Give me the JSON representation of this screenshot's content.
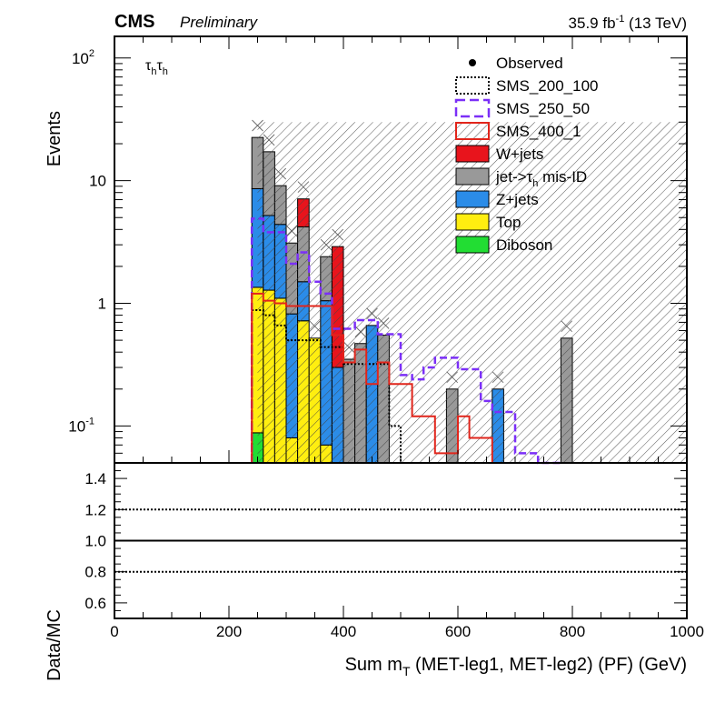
{
  "header": {
    "experiment": "CMS",
    "status": "Preliminary",
    "lumi": "35.9 fb",
    "lumi_sup": "-1",
    "energy": " (13 TeV)"
  },
  "channel": {
    "base": "τ",
    "sub": "h",
    "base2": "τ",
    "sub2": "h"
  },
  "chart_data": [
    {
      "type": "bar",
      "stacked": true,
      "log_y": true,
      "xlabel": "Sum m",
      "xlabel_sub": "T",
      "xlabel_rest": " (MET-leg1, MET-leg2) (PF) (GeV)",
      "ylabel": "Events",
      "xlim": [
        0,
        1000
      ],
      "ylim": [
        0.05,
        150
      ],
      "bin_width": 20,
      "yticks": [
        {
          "v": 0.1,
          "base": "10",
          "exp": "-1"
        },
        {
          "v": 1,
          "base": "1",
          "exp": ""
        },
        {
          "v": 10,
          "base": "10",
          "exp": ""
        },
        {
          "v": 100,
          "base": "10",
          "exp": "2"
        }
      ],
      "x_bin_edges_lo": [
        260,
        280,
        300,
        320,
        340,
        360,
        380,
        400,
        420,
        440,
        460,
        480,
        500,
        520,
        540,
        560,
        580,
        600,
        620,
        640,
        660,
        680,
        700,
        720,
        740,
        760,
        780
      ],
      "legend": [
        {
          "label": "Observed",
          "kind": "marker"
        },
        {
          "label": "SMS_200_100",
          "kind": "dotted",
          "color": "#000000"
        },
        {
          "label": "SMS_250_50",
          "kind": "dashed",
          "color": "#7b2ff7"
        },
        {
          "label": "SMS_400_1",
          "kind": "solid",
          "color": "#e1251b"
        },
        {
          "label": "W+jets",
          "kind": "fill",
          "color": "#e8141c"
        },
        {
          "label": "jet->τ",
          "label_sub": "h",
          "label_rest": " mis-ID",
          "kind": "fill",
          "color": "#999999"
        },
        {
          "label": "Z+jets",
          "kind": "fill",
          "color": "#2b8ce8"
        },
        {
          "label": "Top",
          "kind": "fill",
          "color": "#ffee10"
        },
        {
          "label": "Diboson",
          "kind": "fill",
          "color": "#22dd33"
        }
      ],
      "stack": [
        {
          "x": 250,
          "Diboson": 0.088,
          "Top": 1.35,
          "Zjets": 8.6,
          "jetfake": 22.5,
          "Wjets": 0
        },
        {
          "x": 270,
          "Diboson": 0,
          "Top": 1.28,
          "Zjets": 5.2,
          "jetfake": 17.2,
          "Wjets": 0
        },
        {
          "x": 290,
          "Diboson": 0,
          "Top": 1.1,
          "Zjets": 4.4,
          "jetfake": 9.1,
          "Wjets": 0
        },
        {
          "x": 310,
          "Diboson": 0,
          "Top": 0.08,
          "Zjets": 0.82,
          "jetfake": 3.1,
          "Wjets": 0
        },
        {
          "x": 330,
          "Diboson": 0,
          "Top": 0.72,
          "Zjets": 1.5,
          "jetfake": 4.2,
          "Wjets": 7.1
        },
        {
          "x": 350,
          "Diboson": 0,
          "Top": 0.52,
          "Zjets": 0.52,
          "jetfake": 0.52,
          "Wjets": 0
        },
        {
          "x": 370,
          "Diboson": 0,
          "Top": 0.07,
          "Zjets": 1.05,
          "jetfake": 2.4,
          "Wjets": 0
        },
        {
          "x": 390,
          "Diboson": 0,
          "Top": 0,
          "Zjets": 0.3,
          "jetfake": 0.3,
          "Wjets": 2.9
        },
        {
          "x": 410,
          "Diboson": 0,
          "Top": 0,
          "Zjets": 0,
          "jetfake": 0.35,
          "Wjets": 0
        },
        {
          "x": 430,
          "Diboson": 0,
          "Top": 0,
          "Zjets": 0,
          "jetfake": 0.47,
          "Wjets": 0
        },
        {
          "x": 450,
          "Diboson": 0,
          "Top": 0,
          "Zjets": 0.66,
          "jetfake": 0.66,
          "Wjets": 0
        },
        {
          "x": 470,
          "Diboson": 0,
          "Top": 0,
          "Zjets": 0,
          "jetfake": 0.55,
          "Wjets": 0
        },
        {
          "x": 590,
          "Diboson": 0,
          "Top": 0,
          "Zjets": 0,
          "jetfake": 0.2,
          "Wjets": 0
        },
        {
          "x": 670,
          "Diboson": 0,
          "Top": 0,
          "Zjets": 0.2,
          "jetfake": 0.2,
          "Wjets": 0
        },
        {
          "x": 790,
          "Diboson": 0,
          "Top": 0,
          "Zjets": 0,
          "jetfake": 0.52,
          "Wjets": 0
        }
      ],
      "stack_series_order": [
        "Diboson",
        "Top",
        "Zjets",
        "jetfake",
        "Wjets"
      ],
      "signals": {
        "SMS_200_100": {
          "x": [
            250,
            270,
            290,
            310,
            330,
            350,
            370,
            390,
            410,
            430,
            450,
            470,
            490,
            510,
            530
          ],
          "values": [
            0.88,
            0.8,
            0.66,
            0.5,
            0.5,
            0.5,
            0.44,
            0.44,
            0.32,
            0.32,
            0.32,
            0.32,
            0.1,
            0.05,
            0.05
          ]
        },
        "SMS_250_50": {
          "x": [
            250,
            270,
            290,
            310,
            330,
            350,
            370,
            390,
            410,
            430,
            450,
            470,
            490,
            510,
            530,
            550,
            570,
            590,
            610,
            630,
            650,
            670,
            690,
            710,
            730,
            750,
            770
          ],
          "values": [
            4.9,
            3.8,
            3.8,
            2.1,
            2.6,
            1.5,
            1.2,
            0.62,
            0.62,
            0.73,
            0.73,
            0.56,
            0.56,
            0.26,
            0.24,
            0.3,
            0.36,
            0.36,
            0.29,
            0.29,
            0.16,
            0.13,
            0.13,
            0.06,
            0.06,
            0.05,
            0.05
          ]
        },
        "SMS_400_1": {
          "x": [
            250,
            270,
            290,
            310,
            330,
            350,
            370,
            390,
            410,
            430,
            450,
            470,
            490,
            510,
            530,
            550,
            570,
            590,
            610,
            630,
            650,
            670,
            690,
            710,
            730,
            750,
            770
          ],
          "values": [
            1.2,
            1.05,
            1.0,
            0.95,
            0.95,
            0.95,
            0.95,
            0.55,
            0.33,
            0.42,
            0.22,
            0.33,
            0.22,
            0.22,
            0.12,
            0.12,
            0.06,
            0.06,
            0.12,
            0.08,
            0.08,
            0.05,
            0.05,
            0.05,
            0.05,
            0.05,
            0.05
          ]
        }
      },
      "uncertainty_band": {
        "x": [
          250,
          1000
        ],
        "upper": 30
      }
    },
    {
      "type": "line",
      "ylabel": "Data/MC",
      "xlim": [
        0,
        1000
      ],
      "ylim": [
        0.5,
        1.5
      ],
      "yticks": [
        0.6,
        0.8,
        1.0,
        1.2,
        1.4
      ],
      "ytick_labels": [
        "0.6",
        "0.8",
        "1.0",
        "1.2",
        "1.4"
      ],
      "xticks": [
        0,
        200,
        400,
        600,
        800,
        1000
      ],
      "xtick_labels": [
        "0",
        "200",
        "400",
        "600",
        "800",
        "1000"
      ],
      "reference_lines": [
        {
          "y": 1.0,
          "style": "solid"
        },
        {
          "y": 0.8,
          "style": "dotted"
        },
        {
          "y": 1.2,
          "style": "dotted"
        }
      ]
    }
  ]
}
